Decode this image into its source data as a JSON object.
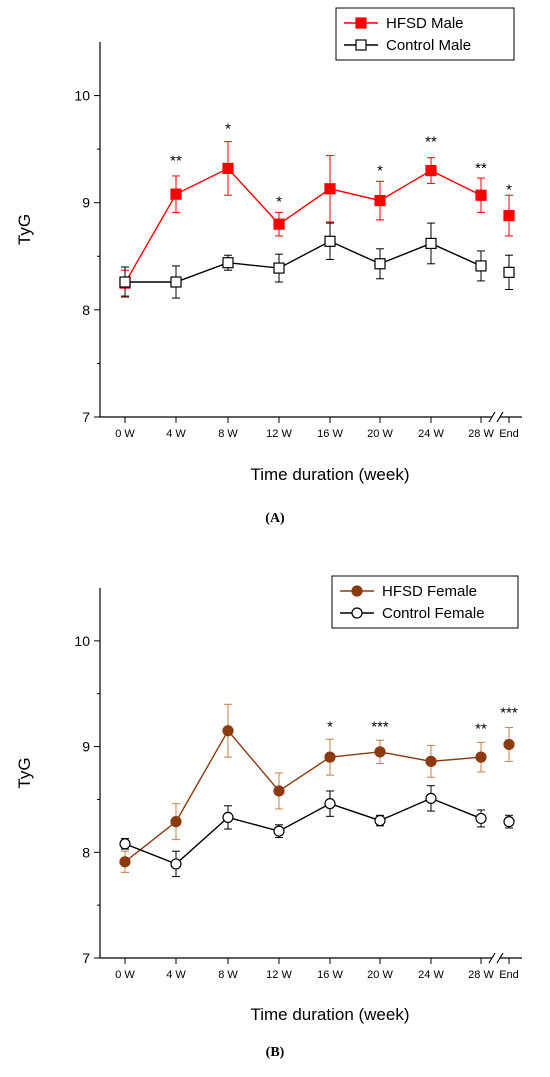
{
  "chart_data": [
    {
      "type": "line",
      "panel_label": "(A)",
      "ylabel": "TyG",
      "xlabel": "Time duration (week)",
      "categories": [
        "0 W",
        "4 W",
        "8 W",
        "12 W",
        "16 W",
        "20 W",
        "24 W",
        "28 W",
        "End"
      ],
      "ylim": [
        7,
        10.5
      ],
      "yticks": [
        7,
        8,
        9,
        10
      ],
      "axis_break_before_last": true,
      "legend_position": "top-right",
      "series": [
        {
          "name": "HFSD Male",
          "color": "#ff0000",
          "errcolor": "#ff0000",
          "marker": "square-filled",
          "values": [
            8.25,
            9.08,
            9.32,
            8.8,
            9.13,
            9.02,
            9.3,
            9.07,
            8.88
          ],
          "errors": [
            0.12,
            0.17,
            0.25,
            0.11,
            0.31,
            0.18,
            0.12,
            0.16,
            0.19
          ],
          "connected_last": false
        },
        {
          "name": "Control Male",
          "color": "#000000",
          "errcolor": "#000000",
          "marker": "square-open",
          "values": [
            8.26,
            8.26,
            8.44,
            8.39,
            8.64,
            8.43,
            8.62,
            8.41,
            8.35
          ],
          "errors": [
            0.14,
            0.15,
            0.07,
            0.13,
            0.17,
            0.14,
            0.19,
            0.14,
            0.16
          ],
          "connected_last": false
        }
      ],
      "annotations": [
        {
          "category": "4 W",
          "text": "**",
          "y": 9.42
        },
        {
          "category": "8 W",
          "text": "*",
          "y": 9.72
        },
        {
          "category": "12 W",
          "text": "*",
          "y": 9.04
        },
        {
          "category": "20 W",
          "text": "*",
          "y": 9.33
        },
        {
          "category": "24 W",
          "text": "**",
          "y": 9.6
        },
        {
          "category": "28 W",
          "text": "**",
          "y": 9.35
        },
        {
          "category": "End",
          "text": "*",
          "y": 9.15
        }
      ]
    },
    {
      "type": "line",
      "panel_label": "(B)",
      "ylabel": "TyG",
      "xlabel": "Time duration (week)",
      "categories": [
        "0 W",
        "4 W",
        "8 W",
        "12 W",
        "16 W",
        "20 W",
        "24 W",
        "28 W",
        "End"
      ],
      "ylim": [
        7,
        10.5
      ],
      "yticks": [
        7,
        8,
        9,
        10
      ],
      "axis_break_before_last": true,
      "legend_position": "top-right",
      "series": [
        {
          "name": "HFSD Female",
          "color": "#8b3a0f",
          "errcolor": "#c0804a",
          "marker": "circle-filled",
          "values": [
            7.91,
            8.29,
            9.15,
            8.58,
            8.9,
            8.95,
            8.86,
            8.9,
            9.02
          ],
          "errors": [
            0.1,
            0.17,
            0.25,
            0.17,
            0.17,
            0.11,
            0.15,
            0.14,
            0.16
          ],
          "connected_last": false
        },
        {
          "name": "Control Female",
          "color": "#000000",
          "errcolor": "#000000",
          "marker": "circle-open",
          "values": [
            8.08,
            7.89,
            8.33,
            8.2,
            8.46,
            8.3,
            8.51,
            8.32,
            8.29
          ],
          "errors": [
            0.05,
            0.12,
            0.11,
            0.06,
            0.12,
            0.05,
            0.12,
            0.08,
            0.06
          ],
          "connected_last": false
        }
      ],
      "annotations": [
        {
          "category": "16 W",
          "text": "*",
          "y": 9.22
        },
        {
          "category": "20 W",
          "text": "***",
          "y": 9.22
        },
        {
          "category": "28 W",
          "text": "**",
          "y": 9.2
        },
        {
          "category": "End",
          "text": "***",
          "y": 9.35
        }
      ]
    }
  ]
}
